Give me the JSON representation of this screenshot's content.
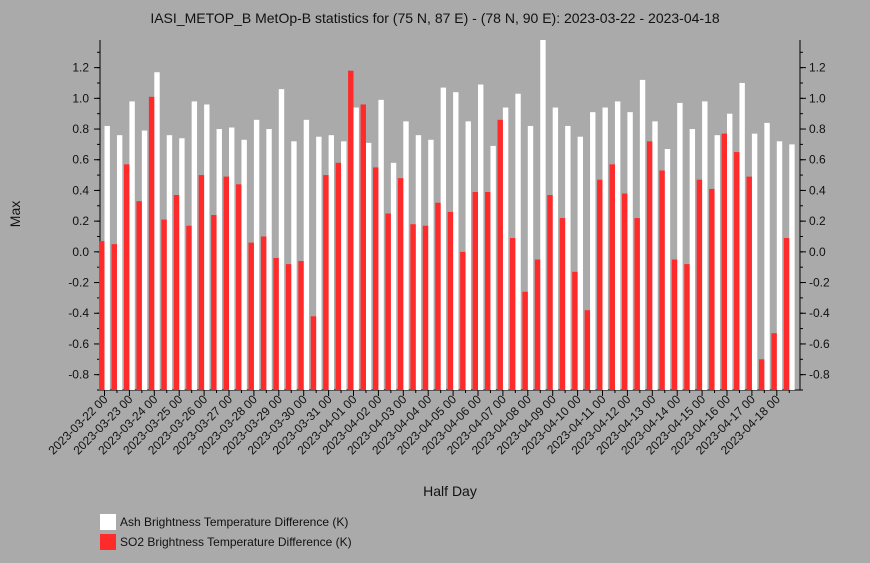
{
  "chart_data": {
    "type": "bar",
    "title": "IASI_METOP_B MetOp-B statistics for (75 N, 87 E) - (78 N, 90 E): 2023-03-22 - 2023-04-18",
    "xlabel": "Half Day",
    "ylabel": "Max",
    "ylim": [
      -0.9,
      1.38
    ],
    "yticks": [
      "-0.8",
      "-0.6",
      "-0.4",
      "-0.2",
      "0.0",
      "0.2",
      "0.4",
      "0.6",
      "0.8",
      "1.0",
      "1.2"
    ],
    "xtick_labels": [
      "2023-03-22 00",
      "2023-03-23 00",
      "2023-03-24 00",
      "2023-03-25 00",
      "2023-03-26 00",
      "2023-03-27 00",
      "2023-03-28 00",
      "2023-03-29 00",
      "2023-03-30 00",
      "2023-03-31 00",
      "2023-04-01 00",
      "2023-04-02 00",
      "2023-04-03 00",
      "2023-04-04 00",
      "2023-04-05 00",
      "2023-04-06 00",
      "2023-04-07 00",
      "2023-04-08 00",
      "2023-04-09 00",
      "2023-04-10 00",
      "2023-04-11 00",
      "2023-04-12 00",
      "2023-04-13 00",
      "2023-04-14 00",
      "2023-04-15 00",
      "2023-04-16 00",
      "2023-04-17 00",
      "2023-04-18 00"
    ],
    "legend_position": "bottom-left",
    "series": [
      {
        "name": "Ash Brightness Temperature Difference (K)",
        "color": "#ffffff",
        "values": [
          0.82,
          0.76,
          0.98,
          0.79,
          1.17,
          0.76,
          0.74,
          0.98,
          0.96,
          0.8,
          0.81,
          0.73,
          0.86,
          0.8,
          1.06,
          0.72,
          0.86,
          0.75,
          0.76,
          0.72,
          0.94,
          0.71,
          0.99,
          0.58,
          0.85,
          0.76,
          0.73,
          1.07,
          1.04,
          0.85,
          1.09,
          0.69,
          0.94,
          1.03,
          0.82,
          1.38,
          0.94,
          0.82,
          0.75,
          0.91,
          0.94,
          0.98,
          0.91,
          1.12,
          0.85,
          0.67,
          0.97,
          0.8,
          0.98,
          0.76,
          0.9,
          1.1,
          0.77,
          0.84,
          0.72,
          0.7
        ]
      },
      {
        "name": "SO2 Brightness Temperature Difference (K)",
        "color": "#ff2a2a",
        "values": [
          0.07,
          0.05,
          0.57,
          0.33,
          1.01,
          0.21,
          0.37,
          0.17,
          0.5,
          0.24,
          0.49,
          0.44,
          0.06,
          0.1,
          -0.04,
          -0.08,
          -0.06,
          -0.42,
          0.5,
          0.58,
          1.18,
          0.96,
          0.55,
          0.25,
          0.48,
          0.18,
          0.17,
          0.32,
          0.26,
          0.0,
          0.39,
          0.39,
          0.86,
          0.09,
          -0.26,
          -0.05,
          0.37,
          0.22,
          -0.13,
          -0.38,
          0.47,
          0.57,
          0.38,
          0.22,
          0.72,
          0.53,
          -0.05,
          -0.08,
          0.47,
          0.41,
          0.77,
          0.65,
          0.49,
          -0.7,
          -0.53,
          0.09
        ]
      }
    ]
  }
}
